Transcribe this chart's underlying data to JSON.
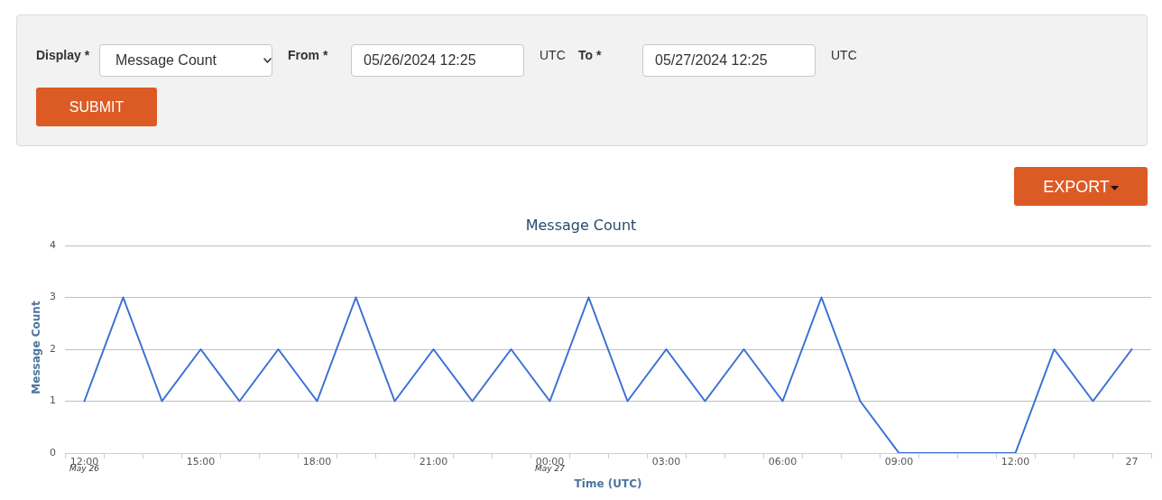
{
  "chart_data": {
    "type": "line",
    "title": "Message Count",
    "xlabel": "Time (UTC)",
    "ylabel": "Message Count",
    "categories": [
      "12:00\nMay 26",
      null,
      null,
      "15:00",
      null,
      null,
      "18:00",
      null,
      null,
      "21:00",
      null,
      null,
      "00:00\nMay 27",
      null,
      null,
      "03:00",
      null,
      null,
      "06:00",
      null,
      null,
      "09:00",
      null,
      null,
      "12:00",
      null,
      null,
      "27"
    ],
    "series": [
      {
        "color": "#3b6fd4",
        "values": [
          1,
          3,
          1,
          2,
          1,
          2,
          1,
          3,
          1,
          2,
          1,
          2,
          1,
          3,
          1,
          2,
          1,
          2,
          1,
          3,
          1,
          0,
          0,
          0,
          0,
          2,
          1,
          2
        ]
      }
    ],
    "ylim": [
      0,
      4
    ],
    "yticks": [
      0,
      1,
      2,
      3,
      4
    ],
    "grid": "y",
    "legend": false,
    "marker": "none",
    "line_style": "solid",
    "annotations": [
      "Display *",
      "Message Count",
      "From *",
      "05/26/2024 12:25",
      "UTC",
      "To *",
      "05/27/2024 12:25",
      "UTC",
      "SUBMIT",
      "EXPORT"
    ]
  }
}
